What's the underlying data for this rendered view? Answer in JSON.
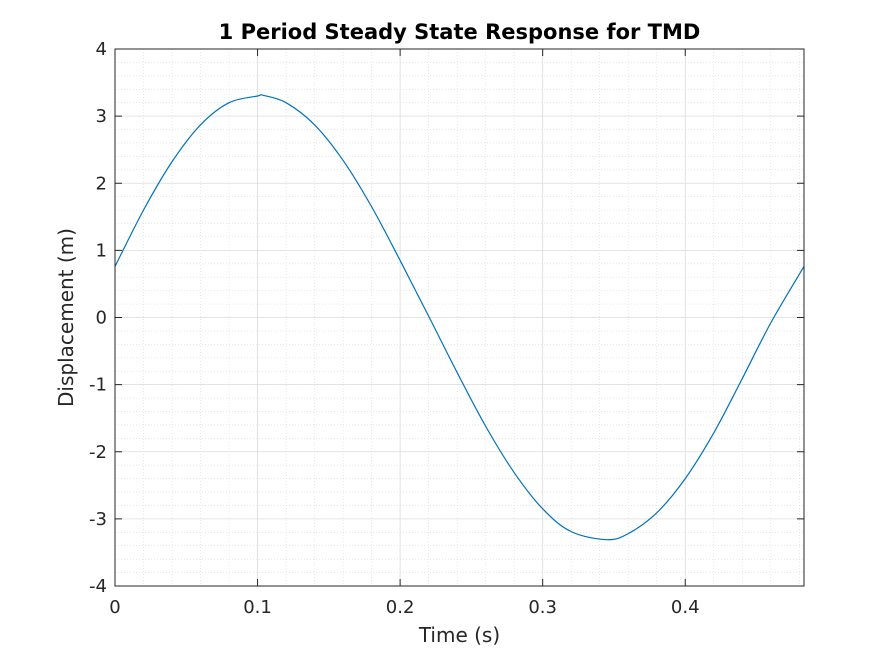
{
  "chart_data": {
    "type": "line",
    "title": "1 Period Steady State Response for TMD",
    "xlabel": "Time (s)",
    "ylabel": "Displacement (m)",
    "xlim": [
      0,
      0.4833
    ],
    "ylim": [
      -4,
      4
    ],
    "x_ticks": [
      0,
      0.1,
      0.2,
      0.3,
      0.4
    ],
    "x_tick_labels": [
      "0",
      "0.1",
      "0.2",
      "0.3",
      "0.4"
    ],
    "y_ticks": [
      -4,
      -3,
      -2,
      -1,
      0,
      1,
      2,
      3,
      4
    ],
    "y_tick_labels": [
      "-4",
      "-3",
      "-2",
      "-1",
      "0",
      "1",
      "2",
      "3",
      "4"
    ],
    "grid": true,
    "minor_grid": true,
    "legend": "none",
    "series": [
      {
        "color": "#0072BD",
        "x": [
          0,
          0.02,
          0.04,
          0.06,
          0.08,
          0.1,
          0.104,
          0.12,
          0.14,
          0.16,
          0.18,
          0.2,
          0.22,
          0.24,
          0.26,
          0.28,
          0.3,
          0.32,
          0.345,
          0.36,
          0.38,
          0.4,
          0.42,
          0.44,
          0.46,
          0.4833
        ],
        "y": [
          0.76,
          1.6,
          2.32,
          2.87,
          3.2,
          3.3,
          3.31,
          3.2,
          2.87,
          2.34,
          1.65,
          0.85,
          0.02,
          -0.82,
          -1.62,
          -2.31,
          -2.85,
          -3.19,
          -3.31,
          -3.22,
          -2.91,
          -2.4,
          -1.72,
          -0.91,
          -0.08,
          0.76
        ]
      }
    ]
  }
}
